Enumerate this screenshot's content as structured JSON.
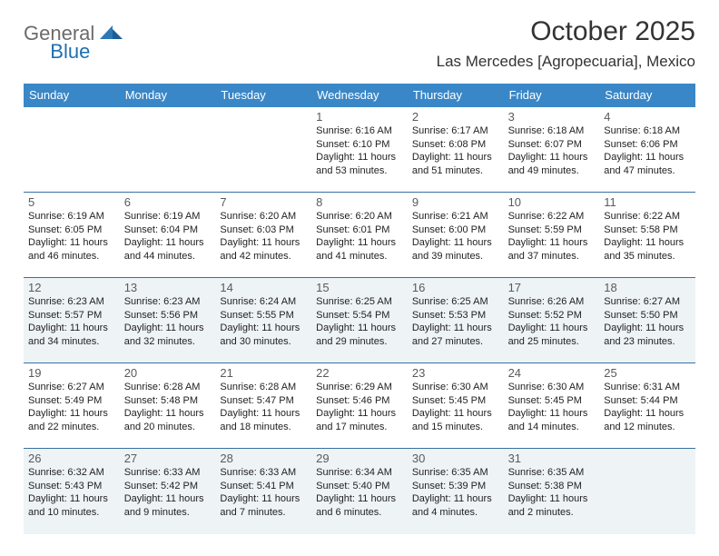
{
  "logo": {
    "general": "General",
    "blue": "Blue"
  },
  "title": "October 2025",
  "location": "Las Mercedes [Agropecuaria], Mexico",
  "colors": {
    "header_bg": "#3a87c8",
    "header_text": "#ffffff",
    "rule": "#3a6fa0",
    "shade": "#eef3f6",
    "text": "#222222",
    "daynum": "#5a5a5a"
  },
  "daynames": [
    "Sunday",
    "Monday",
    "Tuesday",
    "Wednesday",
    "Thursday",
    "Friday",
    "Saturday"
  ],
  "weeks": [
    {
      "shaded": false,
      "cells": [
        {
          "empty": true
        },
        {
          "empty": true
        },
        {
          "empty": true
        },
        {
          "day": "1",
          "sunrise": "Sunrise: 6:16 AM",
          "sunset": "Sunset: 6:10 PM",
          "day1": "Daylight: 11 hours",
          "day2": "and 53 minutes."
        },
        {
          "day": "2",
          "sunrise": "Sunrise: 6:17 AM",
          "sunset": "Sunset: 6:08 PM",
          "day1": "Daylight: 11 hours",
          "day2": "and 51 minutes."
        },
        {
          "day": "3",
          "sunrise": "Sunrise: 6:18 AM",
          "sunset": "Sunset: 6:07 PM",
          "day1": "Daylight: 11 hours",
          "day2": "and 49 minutes."
        },
        {
          "day": "4",
          "sunrise": "Sunrise: 6:18 AM",
          "sunset": "Sunset: 6:06 PM",
          "day1": "Daylight: 11 hours",
          "day2": "and 47 minutes."
        }
      ]
    },
    {
      "shaded": false,
      "cells": [
        {
          "day": "5",
          "sunrise": "Sunrise: 6:19 AM",
          "sunset": "Sunset: 6:05 PM",
          "day1": "Daylight: 11 hours",
          "day2": "and 46 minutes."
        },
        {
          "day": "6",
          "sunrise": "Sunrise: 6:19 AM",
          "sunset": "Sunset: 6:04 PM",
          "day1": "Daylight: 11 hours",
          "day2": "and 44 minutes."
        },
        {
          "day": "7",
          "sunrise": "Sunrise: 6:20 AM",
          "sunset": "Sunset: 6:03 PM",
          "day1": "Daylight: 11 hours",
          "day2": "and 42 minutes."
        },
        {
          "day": "8",
          "sunrise": "Sunrise: 6:20 AM",
          "sunset": "Sunset: 6:01 PM",
          "day1": "Daylight: 11 hours",
          "day2": "and 41 minutes."
        },
        {
          "day": "9",
          "sunrise": "Sunrise: 6:21 AM",
          "sunset": "Sunset: 6:00 PM",
          "day1": "Daylight: 11 hours",
          "day2": "and 39 minutes."
        },
        {
          "day": "10",
          "sunrise": "Sunrise: 6:22 AM",
          "sunset": "Sunset: 5:59 PM",
          "day1": "Daylight: 11 hours",
          "day2": "and 37 minutes."
        },
        {
          "day": "11",
          "sunrise": "Sunrise: 6:22 AM",
          "sunset": "Sunset: 5:58 PM",
          "day1": "Daylight: 11 hours",
          "day2": "and 35 minutes."
        }
      ]
    },
    {
      "shaded": true,
      "cells": [
        {
          "day": "12",
          "sunrise": "Sunrise: 6:23 AM",
          "sunset": "Sunset: 5:57 PM",
          "day1": "Daylight: 11 hours",
          "day2": "and 34 minutes."
        },
        {
          "day": "13",
          "sunrise": "Sunrise: 6:23 AM",
          "sunset": "Sunset: 5:56 PM",
          "day1": "Daylight: 11 hours",
          "day2": "and 32 minutes."
        },
        {
          "day": "14",
          "sunrise": "Sunrise: 6:24 AM",
          "sunset": "Sunset: 5:55 PM",
          "day1": "Daylight: 11 hours",
          "day2": "and 30 minutes."
        },
        {
          "day": "15",
          "sunrise": "Sunrise: 6:25 AM",
          "sunset": "Sunset: 5:54 PM",
          "day1": "Daylight: 11 hours",
          "day2": "and 29 minutes."
        },
        {
          "day": "16",
          "sunrise": "Sunrise: 6:25 AM",
          "sunset": "Sunset: 5:53 PM",
          "day1": "Daylight: 11 hours",
          "day2": "and 27 minutes."
        },
        {
          "day": "17",
          "sunrise": "Sunrise: 6:26 AM",
          "sunset": "Sunset: 5:52 PM",
          "day1": "Daylight: 11 hours",
          "day2": "and 25 minutes."
        },
        {
          "day": "18",
          "sunrise": "Sunrise: 6:27 AM",
          "sunset": "Sunset: 5:50 PM",
          "day1": "Daylight: 11 hours",
          "day2": "and 23 minutes."
        }
      ]
    },
    {
      "shaded": false,
      "cells": [
        {
          "day": "19",
          "sunrise": "Sunrise: 6:27 AM",
          "sunset": "Sunset: 5:49 PM",
          "day1": "Daylight: 11 hours",
          "day2": "and 22 minutes."
        },
        {
          "day": "20",
          "sunrise": "Sunrise: 6:28 AM",
          "sunset": "Sunset: 5:48 PM",
          "day1": "Daylight: 11 hours",
          "day2": "and 20 minutes."
        },
        {
          "day": "21",
          "sunrise": "Sunrise: 6:28 AM",
          "sunset": "Sunset: 5:47 PM",
          "day1": "Daylight: 11 hours",
          "day2": "and 18 minutes."
        },
        {
          "day": "22",
          "sunrise": "Sunrise: 6:29 AM",
          "sunset": "Sunset: 5:46 PM",
          "day1": "Daylight: 11 hours",
          "day2": "and 17 minutes."
        },
        {
          "day": "23",
          "sunrise": "Sunrise: 6:30 AM",
          "sunset": "Sunset: 5:45 PM",
          "day1": "Daylight: 11 hours",
          "day2": "and 15 minutes."
        },
        {
          "day": "24",
          "sunrise": "Sunrise: 6:30 AM",
          "sunset": "Sunset: 5:45 PM",
          "day1": "Daylight: 11 hours",
          "day2": "and 14 minutes."
        },
        {
          "day": "25",
          "sunrise": "Sunrise: 6:31 AM",
          "sunset": "Sunset: 5:44 PM",
          "day1": "Daylight: 11 hours",
          "day2": "and 12 minutes."
        }
      ]
    },
    {
      "shaded": true,
      "cells": [
        {
          "day": "26",
          "sunrise": "Sunrise: 6:32 AM",
          "sunset": "Sunset: 5:43 PM",
          "day1": "Daylight: 11 hours",
          "day2": "and 10 minutes."
        },
        {
          "day": "27",
          "sunrise": "Sunrise: 6:33 AM",
          "sunset": "Sunset: 5:42 PM",
          "day1": "Daylight: 11 hours",
          "day2": "and 9 minutes."
        },
        {
          "day": "28",
          "sunrise": "Sunrise: 6:33 AM",
          "sunset": "Sunset: 5:41 PM",
          "day1": "Daylight: 11 hours",
          "day2": "and 7 minutes."
        },
        {
          "day": "29",
          "sunrise": "Sunrise: 6:34 AM",
          "sunset": "Sunset: 5:40 PM",
          "day1": "Daylight: 11 hours",
          "day2": "and 6 minutes."
        },
        {
          "day": "30",
          "sunrise": "Sunrise: 6:35 AM",
          "sunset": "Sunset: 5:39 PM",
          "day1": "Daylight: 11 hours",
          "day2": "and 4 minutes."
        },
        {
          "day": "31",
          "sunrise": "Sunrise: 6:35 AM",
          "sunset": "Sunset: 5:38 PM",
          "day1": "Daylight: 11 hours",
          "day2": "and 2 minutes."
        },
        {
          "empty": true
        }
      ]
    }
  ]
}
